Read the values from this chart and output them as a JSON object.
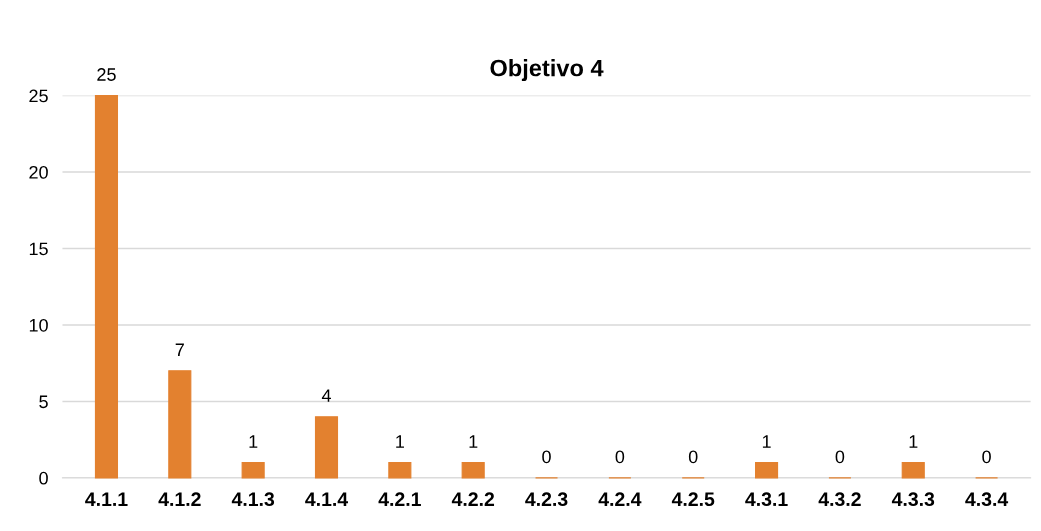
{
  "chart_data": {
    "type": "bar",
    "title": "Objetivo 4",
    "categories": [
      "4.1.1",
      "4.1.2",
      "4.1.3",
      "4.1.4",
      "4.2.1",
      "4.2.2",
      "4.2.3",
      "4.2.4",
      "4.2.5",
      "4.3.1",
      "4.3.2",
      "4.3.3",
      "4.3.4"
    ],
    "values": [
      25,
      7,
      1,
      4,
      1,
      1,
      0,
      0,
      0,
      1,
      0,
      1,
      0
    ],
    "color": "#e3812f",
    "ylim": [
      0,
      25
    ],
    "yticks": [
      0,
      5,
      10,
      15,
      20,
      25
    ],
    "grid": "y",
    "data_labels": true
  }
}
